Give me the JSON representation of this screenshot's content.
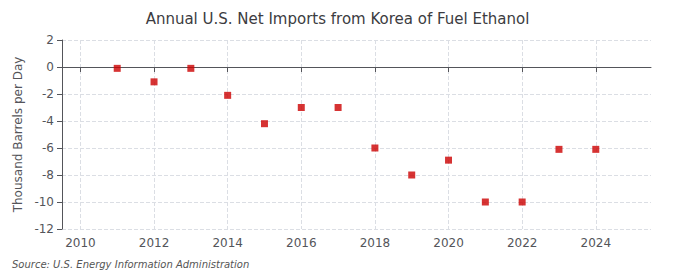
{
  "chart_data": {
    "type": "scatter",
    "title": "Annual U.S. Net Imports from Korea of Fuel Ethanol",
    "ylabel": "Thousand Barrels per Day",
    "source": "Source: U.S. Energy Information Administration",
    "x": [
      2011,
      2012,
      2013,
      2014,
      2015,
      2016,
      2017,
      2018,
      2019,
      2020,
      2021,
      2022,
      2023,
      2024
    ],
    "values": [
      -0.1,
      -1.1,
      -0.1,
      -2.1,
      -4.2,
      -3.0,
      -3.0,
      -6.0,
      -8.0,
      -6.9,
      -10.0,
      -10.0,
      -6.1,
      -6.1
    ],
    "color": "#cc0000",
    "marker": "square",
    "xlim": [
      2009.5,
      2025.5
    ],
    "xticks": [
      2010,
      2012,
      2014,
      2016,
      2018,
      2020,
      2022,
      2024
    ],
    "ylim": [
      -12,
      2
    ],
    "yticks": [
      2,
      0,
      -2,
      -4,
      -6,
      -8,
      -10,
      -12
    ],
    "grid": true
  }
}
